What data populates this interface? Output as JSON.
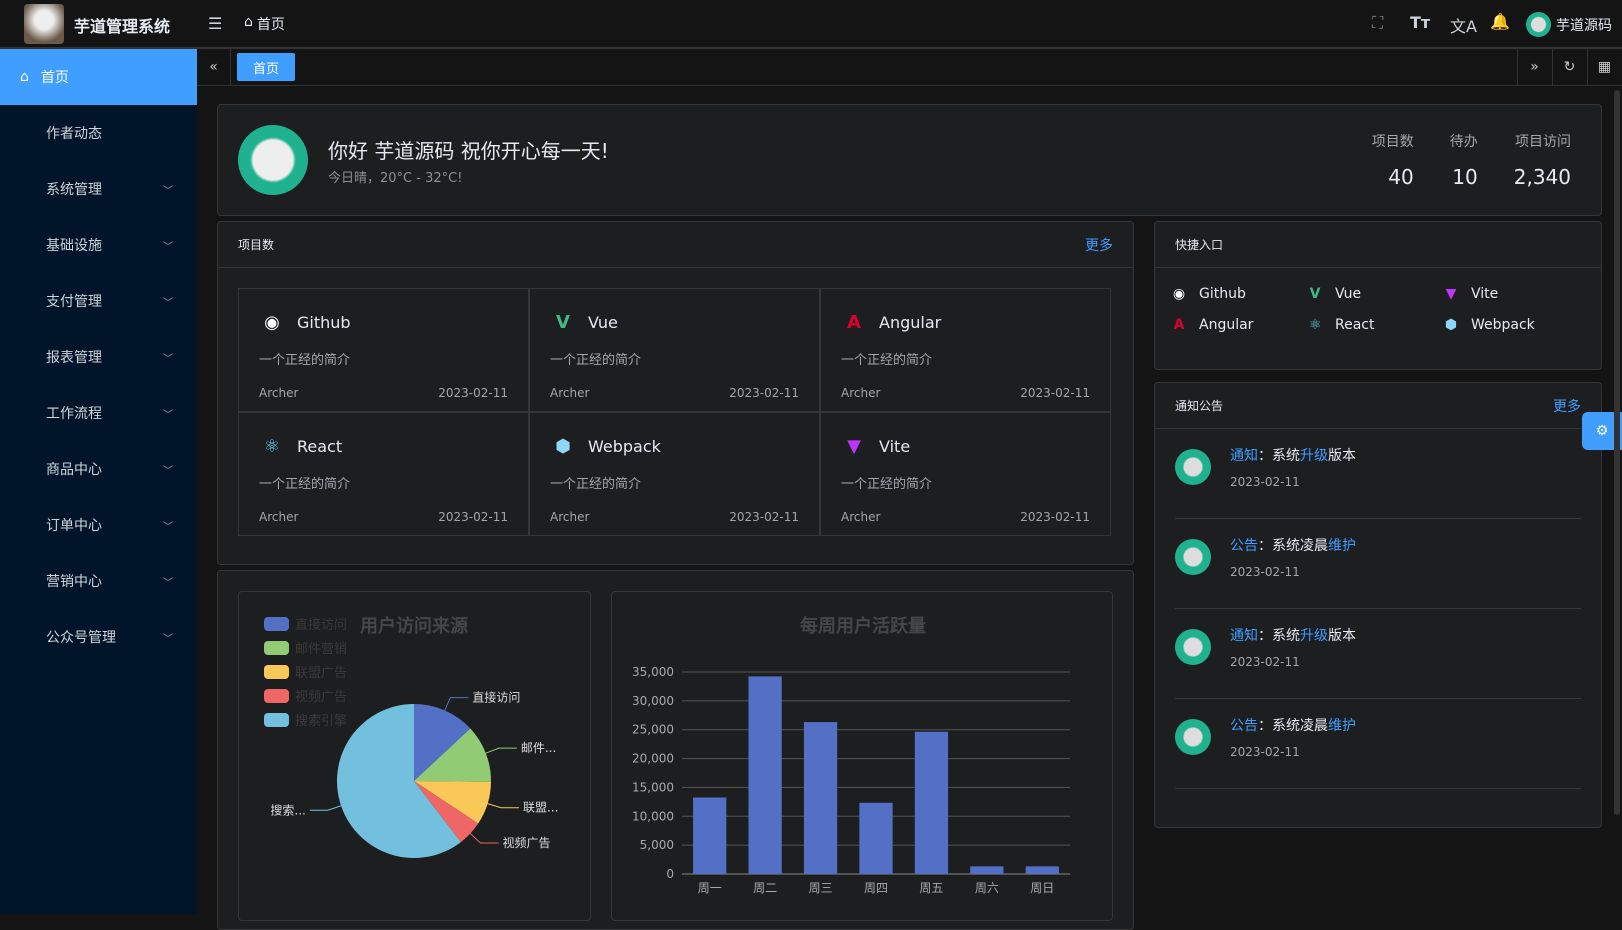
{
  "header": {
    "app_title": "芋道管理系统",
    "breadcrumb": "首页",
    "user_name": "芋道源码",
    "icons": [
      "menu-fold-icon",
      "home-icon",
      "fullscreen-icon",
      "font-size-icon",
      "translate-icon",
      "bell-icon"
    ]
  },
  "sidebar": {
    "items": [
      {
        "label": "首页",
        "active": true
      },
      {
        "label": "作者动态"
      },
      {
        "label": "系统管理",
        "expandable": true
      },
      {
        "label": "基础设施",
        "expandable": true
      },
      {
        "label": "支付管理",
        "expandable": true
      },
      {
        "label": "报表管理",
        "expandable": true
      },
      {
        "label": "工作流程",
        "expandable": true
      },
      {
        "label": "商品中心",
        "expandable": true
      },
      {
        "label": "订单中心",
        "expandable": true
      },
      {
        "label": "营销中心",
        "expandable": true
      },
      {
        "label": "公众号管理",
        "expandable": true
      }
    ]
  },
  "tabs": {
    "items": [
      "首页"
    ]
  },
  "welcome": {
    "greeting": "你好 芋道源码 祝你开心每一天!",
    "weather": "今日晴，20°C - 32°C!",
    "stats": [
      {
        "label": "项目数",
        "value": "40"
      },
      {
        "label": "待办",
        "value": "10"
      },
      {
        "label": "项目访问",
        "value": "2,340"
      }
    ]
  },
  "projects": {
    "title": "项目数",
    "more": "更多",
    "items": [
      {
        "name": "Github",
        "desc": "一个正经的简介",
        "author": "Archer",
        "date": "2023-02-11",
        "icon": "github-icon",
        "color": "#ffffff"
      },
      {
        "name": "Vue",
        "desc": "一个正经的简介",
        "author": "Archer",
        "date": "2023-02-11",
        "icon": "vue-icon",
        "color": "#42b883"
      },
      {
        "name": "Angular",
        "desc": "一个正经的简介",
        "author": "Archer",
        "date": "2023-02-11",
        "icon": "angular-icon",
        "color": "#dd0031"
      },
      {
        "name": "React",
        "desc": "一个正经的简介",
        "author": "Archer",
        "date": "2023-02-11",
        "icon": "react-icon",
        "color": "#61dafb"
      },
      {
        "name": "Webpack",
        "desc": "一个正经的简介",
        "author": "Archer",
        "date": "2023-02-11",
        "icon": "webpack-icon",
        "color": "#8ed6fb"
      },
      {
        "name": "Vite",
        "desc": "一个正经的简介",
        "author": "Archer",
        "date": "2023-02-11",
        "icon": "vite-icon",
        "color": "#bd34fe"
      }
    ]
  },
  "shortcuts": {
    "title": "快捷入口",
    "items": [
      "Github",
      "Vue",
      "Vite",
      "Angular",
      "React",
      "Webpack"
    ]
  },
  "notices": {
    "title": "通知公告",
    "more": "更多",
    "items": [
      {
        "type": "通知",
        "sep": "：",
        "pre": "系统",
        "hl": "升级",
        "post": "版本",
        "date": "2023-02-11"
      },
      {
        "type": "公告",
        "sep": "：",
        "pre": "系统凌晨",
        "hl": "维护",
        "post": "",
        "date": "2023-02-11"
      },
      {
        "type": "通知",
        "sep": "：",
        "pre": "系统",
        "hl": "升级",
        "post": "版本",
        "date": "2023-02-11"
      },
      {
        "type": "公告",
        "sep": "：",
        "pre": "系统凌晨",
        "hl": "维护",
        "post": "",
        "date": "2023-02-11"
      }
    ]
  },
  "colors": {
    "accent": "#409eff",
    "sidebar": "#001529"
  },
  "chart_data": [
    {
      "type": "pie",
      "title": "用户访问来源",
      "legend": "top-left",
      "categories": [
        "直接访问",
        "邮件营销",
        "联盟广告",
        "视频广告",
        "搜索引擎"
      ],
      "labels": [
        "直接访问",
        "邮件...",
        "联盟...",
        "视频广告",
        "搜索..."
      ],
      "values": [
        335,
        310,
        234,
        135,
        1548
      ],
      "colors": [
        "#5470c6",
        "#91cc75",
        "#fac858",
        "#ee6666",
        "#73c0de"
      ]
    },
    {
      "type": "bar",
      "title": "每周用户活跃量",
      "categories": [
        "周一",
        "周二",
        "周三",
        "周四",
        "周五",
        "周六",
        "周日"
      ],
      "values": [
        13253,
        34235,
        26321,
        12340,
        24643,
        1322,
        1324
      ],
      "ylim": [
        0,
        35000
      ],
      "yticks": [
        "0",
        "5,000",
        "10,000",
        "15,000",
        "20,000",
        "25,000",
        "30,000",
        "35,000"
      ],
      "color": "#5470c6",
      "grid": true
    }
  ]
}
